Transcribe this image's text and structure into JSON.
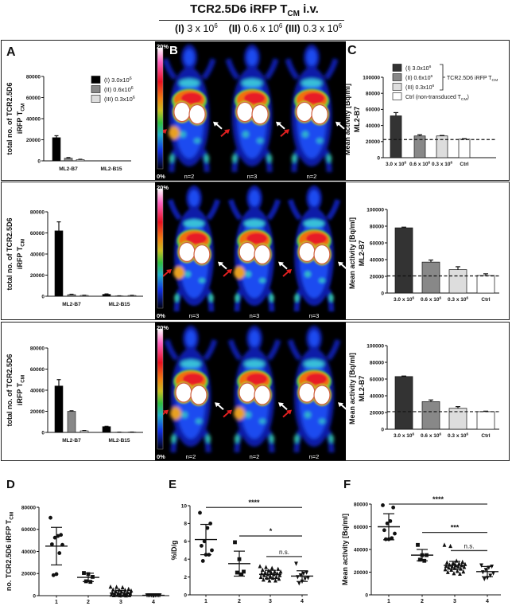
{
  "figure_title": {
    "main": "TCR2.5D6 iRFP T",
    "sub": "CM",
    "end": " i.v."
  },
  "doses": [
    {
      "roman": "(I)",
      "value": "3 x 10",
      "exp": "6"
    },
    {
      "roman": "(II)",
      "value": "0.6 x 10",
      "exp": "6"
    },
    {
      "roman": "(III)",
      "value": "0.3 x 10",
      "exp": "6"
    }
  ],
  "panel_labels": {
    "A": "A",
    "B": "B",
    "C": "C",
    "D": "D",
    "E": "E",
    "F": "F"
  },
  "pet": {
    "scale_max": "20%",
    "scale_min": "0%",
    "rows": [
      {
        "n": [
          "n=2",
          "n=3",
          "n=2"
        ]
      },
      {
        "n": [
          "n=3",
          "n=3",
          "n=3"
        ]
      },
      {
        "n": [
          "n=2",
          "n=2",
          "n=2"
        ]
      }
    ],
    "arrow_colors": {
      "tumor": "#e02020",
      "control": "#ffffff"
    }
  },
  "colors": {
    "dose_I": "#000000",
    "dose_II": "#888888",
    "dose_III": "#dddddd",
    "ctrl": "#ffffff",
    "C_dose_I": "#333333"
  },
  "chart_data": [
    {
      "id": "A-row1",
      "type": "bar",
      "ylabel": [
        "total no. of  TCR2.5D6",
        "iRFP T_CM"
      ],
      "ylim": [
        0,
        80000
      ],
      "yticks": [
        0,
        20000,
        40000,
        60000,
        80000
      ],
      "categories": [
        "ML2-B7",
        "ML2-B15"
      ],
      "series": [
        {
          "name": "(I) 3.0x10^6",
          "values": [
            22000,
            0
          ],
          "errors": [
            1800,
            0
          ]
        },
        {
          "name": "(II) 0.6x10^6",
          "values": [
            2500,
            0
          ],
          "errors": [
            600,
            0
          ]
        },
        {
          "name": "(III) 0.3x10^6",
          "values": [
            1200,
            0
          ],
          "errors": [
            300,
            0
          ]
        }
      ]
    },
    {
      "id": "A-row2",
      "type": "bar",
      "ylabel": [
        "total no. of  TCR2.5D6",
        "iRFP T_CM"
      ],
      "ylim": [
        0,
        80000
      ],
      "yticks": [
        0,
        20000,
        40000,
        60000,
        80000
      ],
      "categories": [
        "ML2-B7",
        "ML2-B15"
      ],
      "series": [
        {
          "values": [
            62000,
            1800
          ],
          "errors": [
            8500,
            400
          ]
        },
        {
          "values": [
            1500,
            300
          ],
          "errors": [
            400,
            100
          ]
        },
        {
          "values": [
            800,
            700
          ],
          "errors": [
            200,
            200
          ]
        }
      ]
    },
    {
      "id": "A-row3",
      "type": "bar",
      "ylabel": [
        "total no. of  TCR2.5D6",
        "iRFP T_CM"
      ],
      "ylim": [
        0,
        80000
      ],
      "yticks": [
        0,
        20000,
        40000,
        60000,
        80000
      ],
      "categories": [
        "ML2-B7",
        "ML2-B15"
      ],
      "series": [
        {
          "values": [
            44000,
            5500
          ],
          "errors": [
            6000,
            300
          ]
        },
        {
          "values": [
            20000,
            200
          ],
          "errors": [
            500,
            50
          ]
        },
        {
          "values": [
            1500,
            300
          ],
          "errors": [
            300,
            50
          ]
        }
      ]
    },
    {
      "id": "C-row1",
      "type": "bar",
      "ylabel": [
        "Mean activity [Bq/ml]",
        "ML2-B7"
      ],
      "ylim": [
        0,
        100000
      ],
      "yticks": [
        0,
        20000,
        40000,
        60000,
        80000,
        100000
      ],
      "categories": [
        "3.0 x 10^6",
        "0.6 x 10^6",
        "0.3 x 10^6",
        "Ctrl"
      ],
      "values": [
        52000,
        27000,
        27000,
        23000
      ],
      "errors": [
        4000,
        1500,
        600,
        600
      ],
      "baseline": 22500,
      "legend": [
        "(I) 3.0x10^6",
        "(II) 0.6x10^6",
        "(III) 0.3x10^6",
        "Ctrl (non-transduced T_CM)"
      ],
      "legend_group_label": "TCR2.5D6 iRFP T_CM"
    },
    {
      "id": "C-row2",
      "type": "bar",
      "ylabel": [
        "Mean activity [Bq/ml]",
        "ML2-B7"
      ],
      "ylim": [
        0,
        100000
      ],
      "yticks": [
        0,
        20000,
        40000,
        60000,
        80000,
        100000
      ],
      "categories": [
        "3.0 x 10^6",
        "0.6 x 10^6",
        "0.3 x 10^6",
        "Ctrl"
      ],
      "values": [
        78000,
        37000,
        28000,
        21000
      ],
      "errors": [
        800,
        2500,
        3500,
        2000
      ],
      "baseline": 20500
    },
    {
      "id": "C-row3",
      "type": "bar",
      "ylabel": [
        "Mean activity [Bq/ml]",
        "ML2-B7"
      ],
      "ylim": [
        0,
        100000
      ],
      "yticks": [
        0,
        20000,
        40000,
        60000,
        80000,
        100000
      ],
      "categories": [
        "3.0 x 10^6",
        "0.6 x 10^6",
        "0.3 x 10^6",
        "Ctrl"
      ],
      "values": [
        63000,
        33000,
        25000,
        21000
      ],
      "errors": [
        600,
        2000,
        2000,
        600
      ],
      "baseline": 21000
    },
    {
      "id": "D",
      "type": "scatter",
      "ylabel": "no. TCR2.5D6 iRFP T_CM",
      "ylim": [
        0,
        80000
      ],
      "yticks": [
        0,
        20000,
        40000,
        60000,
        80000
      ],
      "categories": [
        "1",
        "2",
        "3",
        "4"
      ],
      "groups": [
        {
          "points": [
            70500,
            55000,
            54000,
            52500,
            46500,
            46000,
            38500,
            19500,
            18500
          ],
          "mean": 44800,
          "sd": 17000
        },
        {
          "points": [
            20500,
            19500,
            17000,
            13000,
            12500
          ],
          "mean": 16500,
          "sd": 3800
        },
        {
          "points": [
            8000,
            7800,
            7500,
            6000,
            5500,
            5200,
            5000,
            4500,
            4000,
            3500,
            3000,
            2500,
            2200,
            2000,
            1800,
            1500,
            1200,
            1000,
            800,
            600,
            500,
            400,
            300,
            200,
            100
          ],
          "mean": 2300,
          "sd": 2500
        },
        {
          "points": [
            300,
            300,
            300,
            300,
            300,
            300,
            300,
            300,
            300,
            300
          ],
          "mean": 300,
          "sd": 0
        }
      ],
      "significance": []
    },
    {
      "id": "E",
      "type": "scatter",
      "ylabel": "%ID/g",
      "ylim": [
        0,
        10
      ],
      "yticks": [
        0,
        2,
        4,
        6,
        8,
        10
      ],
      "categories": [
        "1",
        "2",
        "3",
        "4"
      ],
      "groups": [
        {
          "points": [
            9.2,
            8.0,
            7.5,
            6.0,
            5.5,
            5.0,
            4.5,
            4.5,
            3.8
          ],
          "mean": 6.2,
          "sd": 1.7
        },
        {
          "points": [
            5.9,
            4.0,
            2.6,
            2.5,
            2.3
          ],
          "mean": 3.5,
          "sd": 1.4
        },
        {
          "points": [
            3.2,
            3.1,
            3.0,
            2.9,
            2.8,
            2.7,
            2.6,
            2.6,
            2.5,
            2.5,
            2.4,
            2.4,
            2.3,
            2.3,
            2.2,
            2.2,
            2.1,
            2.0,
            2.0,
            1.9,
            1.9,
            1.8,
            1.7,
            1.6,
            1.6
          ],
          "mean": 2.3,
          "sd": 0.45
        },
        {
          "points": [
            3.5,
            2.5,
            2.4,
            2.2,
            2.0,
            1.9,
            1.8,
            1.5,
            1.3
          ],
          "mean": 2.1,
          "sd": 0.6
        }
      ],
      "significance": [
        {
          "from": "1",
          "to": "4",
          "level": 9.8,
          "label": "****"
        },
        {
          "from": "2",
          "to": "4",
          "level": 6.6,
          "label": "*"
        },
        {
          "from": "3",
          "to": "4",
          "level": 4.3,
          "label": "n.s."
        }
      ]
    },
    {
      "id": "F",
      "type": "scatter",
      "ylabel": "Mean activity [Bq/ml]",
      "ylim": [
        0,
        80000
      ],
      "yticks": [
        0,
        20000,
        40000,
        60000,
        80000
      ],
      "categories": [
        "1",
        "2",
        "3",
        "4"
      ],
      "groups": [
        {
          "points": [
            79000,
            77000,
            65000,
            63000,
            57000,
            54000,
            50000,
            49000,
            49000
          ],
          "mean": 60000,
          "sd": 11500
        },
        {
          "points": [
            44000,
            35000,
            35000,
            31000,
            30000
          ],
          "mean": 35000,
          "sd": 5000
        },
        {
          "points": [
            44000,
            43000,
            30000,
            29000,
            28500,
            28000,
            27500,
            27000,
            26500,
            26000,
            26000,
            25500,
            25000,
            25000,
            24500,
            24000,
            23500,
            23000,
            22500,
            22000,
            21000,
            20500,
            20000,
            19000,
            18500
          ],
          "mean": 26000,
          "sd": 3500
        },
        {
          "points": [
            26000,
            25000,
            24000,
            22000,
            20000,
            19000,
            17000,
            15000,
            14000
          ],
          "mean": 20500,
          "sd": 4500
        }
      ],
      "significance": [
        {
          "from": "1",
          "to": "4",
          "level": 80000,
          "label": "****"
        },
        {
          "from": "2",
          "to": "4",
          "level": 55000,
          "label": "***"
        },
        {
          "from": "3",
          "to": "4",
          "level": 39000,
          "label": "n.s."
        }
      ]
    }
  ]
}
